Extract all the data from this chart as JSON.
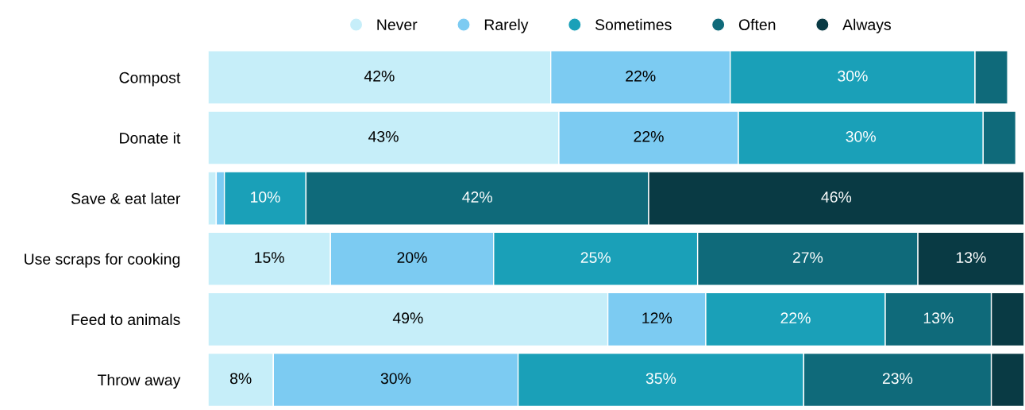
{
  "chart_data": {
    "type": "bar",
    "orientation": "horizontal",
    "stacked": true,
    "legend": "top",
    "grid": false,
    "categories": [
      "Compost",
      "Donate it",
      "Save & eat later",
      "Use scraps for cooking",
      "Feed to animals",
      "Throw away"
    ],
    "series": [
      {
        "name": "Never",
        "color": "#c6eef9",
        "values": [
          42,
          43,
          1,
          15,
          49,
          8
        ],
        "value_labels": [
          "42%",
          "43%",
          null,
          "15%",
          "49%",
          "8%"
        ]
      },
      {
        "name": "Rarely",
        "color": "#7ccbf2",
        "values": [
          22,
          22,
          1,
          20,
          12,
          30
        ],
        "value_labels": [
          "22%",
          "22%",
          null,
          "20%",
          "12%",
          "30%"
        ]
      },
      {
        "name": "Sometimes",
        "color": "#1aa0b8",
        "values": [
          30,
          30,
          10,
          25,
          22,
          35
        ],
        "value_labels": [
          "30%",
          "30%",
          "10%",
          "25%",
          "22%",
          "35%"
        ]
      },
      {
        "name": "Often",
        "color": "#0f6a7a",
        "values": [
          4,
          4,
          42,
          27,
          13,
          23
        ],
        "value_labels": [
          null,
          null,
          "42%",
          "27%",
          "13%",
          "23%"
        ]
      },
      {
        "name": "Always",
        "color": "#093a44",
        "values": [
          null,
          null,
          46,
          13,
          4,
          4
        ],
        "value_labels": [
          null,
          null,
          "46%",
          "13%",
          null,
          null
        ]
      }
    ]
  }
}
